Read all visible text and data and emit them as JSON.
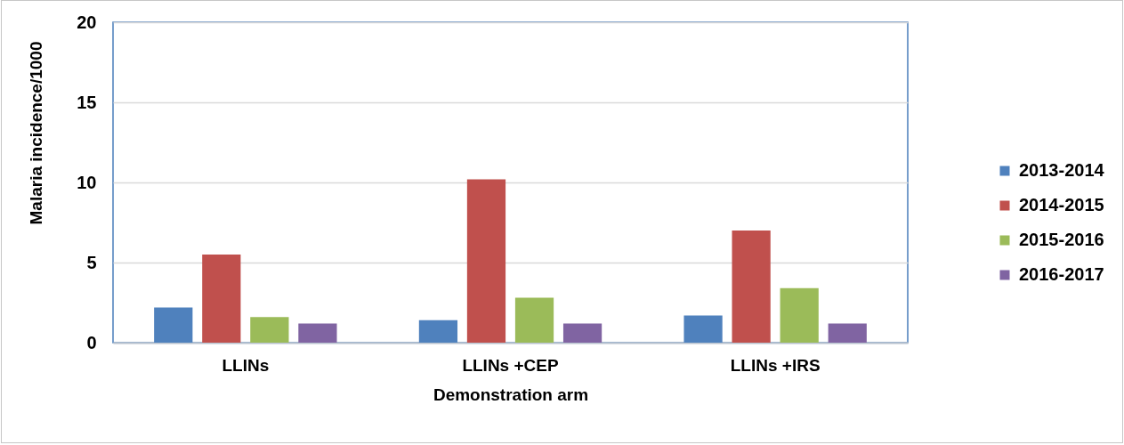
{
  "chart_data": {
    "type": "bar",
    "xlabel": "Demonstration arm",
    "ylabel": "Malaria incidence/1000",
    "categories": [
      "LLINs",
      "LLINs +CEP",
      "LLINs +IRS"
    ],
    "series": [
      {
        "name": "2013-2014",
        "color": "#4f81bd",
        "values": [
          2.2,
          1.4,
          1.7
        ]
      },
      {
        "name": "2014-2015",
        "color": "#c0504d",
        "values": [
          5.5,
          10.2,
          7.0
        ]
      },
      {
        "name": "2015-2016",
        "color": "#9bbb59",
        "values": [
          1.6,
          2.8,
          3.4
        ]
      },
      {
        "name": "2016-2017",
        "color": "#8064a2",
        "values": [
          1.2,
          1.2,
          1.2
        ]
      }
    ],
    "ylim": [
      0,
      20
    ],
    "yticks": [
      0,
      5,
      10,
      15,
      20
    ],
    "grid": "y",
    "legend": "right"
  }
}
